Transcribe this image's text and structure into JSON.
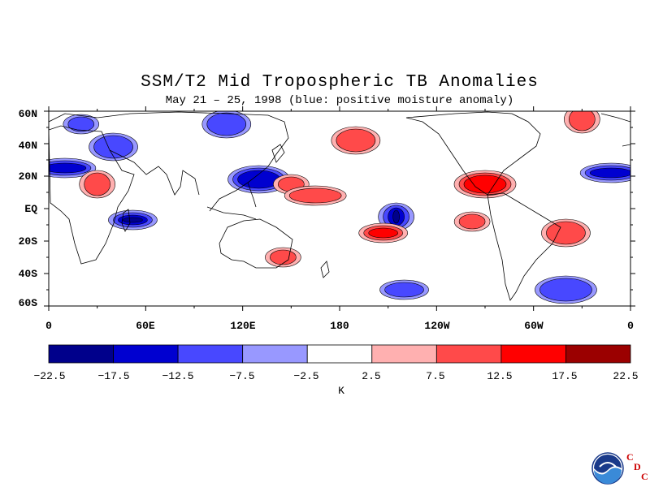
{
  "title": "SSM/T2 Mid Tropospheric TB Anomalies",
  "subtitle": "May 21 – 25, 1998 (blue: positive moisture anomaly)",
  "lat_labels": [
    "60N",
    "40N",
    "20N",
    "EQ",
    "20S",
    "40S",
    "60S"
  ],
  "lon_labels": [
    "0",
    "60E",
    "120E",
    "180",
    "120W",
    "60W",
    "0"
  ],
  "colorbar": {
    "ticks": [
      "−22.5",
      "−17.5",
      "−12.5",
      "−7.5",
      "−2.5",
      "2.5",
      "7.5",
      "12.5",
      "17.5",
      "22.5"
    ],
    "colors": [
      "#00008b",
      "#0000d0",
      "#4848ff",
      "#9898ff",
      "#ffffff",
      "#ffb0b0",
      "#ff4a4a",
      "#ff0000",
      "#9b0000"
    ],
    "unit": "K"
  },
  "logo": {
    "icon": "noaa-logo-icon",
    "letters": [
      "C",
      "D",
      "C"
    ]
  },
  "map_extent": {
    "lon_range": [
      0,
      360
    ],
    "lat_range": [
      -60,
      60
    ]
  },
  "anomaly_regions": [
    {
      "lon": 20,
      "lat": 52,
      "level": -7.5
    },
    {
      "lon": 40,
      "lat": 38,
      "level": -7.5
    },
    {
      "lon": 10,
      "lat": 25,
      "level": -12.5
    },
    {
      "lon": 30,
      "lat": 15,
      "level": 7.5
    },
    {
      "lon": 52,
      "lat": -7,
      "level": -17.5
    },
    {
      "lon": 130,
      "lat": 18,
      "level": -12.5
    },
    {
      "lon": 150,
      "lat": 15,
      "level": 7.5
    },
    {
      "lon": 110,
      "lat": 52,
      "level": -7.5
    },
    {
      "lon": 165,
      "lat": 8,
      "level": 7.5
    },
    {
      "lon": 215,
      "lat": -5,
      "level": -17.5
    },
    {
      "lon": 207,
      "lat": -15,
      "level": 12.5
    },
    {
      "lon": 270,
      "lat": 15,
      "level": 12.5
    },
    {
      "lon": 262,
      "lat": -8,
      "level": 7.5
    },
    {
      "lon": 320,
      "lat": -15,
      "level": 7.5
    },
    {
      "lon": 348,
      "lat": 22,
      "level": -12.5
    },
    {
      "lon": 330,
      "lat": 55,
      "level": 7.5
    },
    {
      "lon": 220,
      "lat": -50,
      "level": -7.5
    },
    {
      "lon": 320,
      "lat": -50,
      "level": -7.5
    },
    {
      "lon": 145,
      "lat": -30,
      "level": 7.5
    },
    {
      "lon": 190,
      "lat": 42,
      "level": 7.5
    }
  ]
}
